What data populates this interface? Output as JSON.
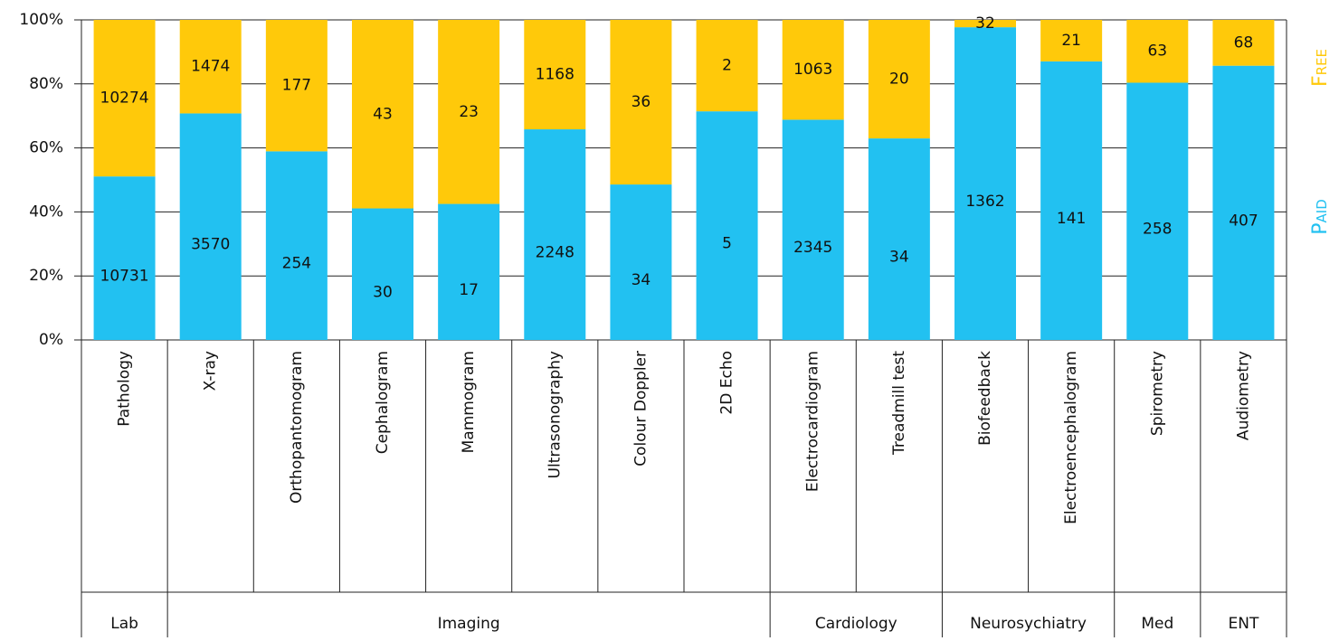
{
  "chart_data": {
    "type": "bar",
    "stacked": "percent",
    "categories": [
      "Pathology",
      "X-ray",
      "Orthopantomogram",
      "Cephalogram",
      "Mammogram",
      "Ultrasonography",
      "Colour Doppler",
      "2D Echo",
      "Electrocardiogram",
      "Treadmill test",
      "Biofeedback",
      "Electroencephalogram",
      "Spirometry",
      "Audiometry"
    ],
    "groups": [
      "Lab",
      "Imaging",
      "Imaging",
      "Imaging",
      "Imaging",
      "Imaging",
      "Imaging",
      "Imaging",
      "Cardiology",
      "Cardiology",
      "Neurosychiatry",
      "Neurosychiatry",
      "Med",
      "ENT"
    ],
    "series": [
      {
        "name": "Paid",
        "color": "#22c1f1",
        "values": [
          10731,
          3570,
          254,
          30,
          17,
          2248,
          34,
          5,
          2345,
          34,
          1362,
          141,
          258,
          407
        ]
      },
      {
        "name": "Free",
        "color": "#ffc90a",
        "values": [
          10274,
          1474,
          177,
          43,
          23,
          1168,
          36,
          2,
          1063,
          20,
          32,
          21,
          63,
          68
        ]
      }
    ],
    "ylim": [
      0,
      100
    ],
    "yticks": [
      {
        "value": 0,
        "label": "0%"
      },
      {
        "value": 20,
        "label": "20%"
      },
      {
        "value": 40,
        "label": "40%"
      },
      {
        "value": 60,
        "label": "60%"
      },
      {
        "value": 80,
        "label": "80%"
      },
      {
        "value": 100,
        "label": "100%"
      }
    ],
    "grid": true,
    "legend": "right"
  }
}
